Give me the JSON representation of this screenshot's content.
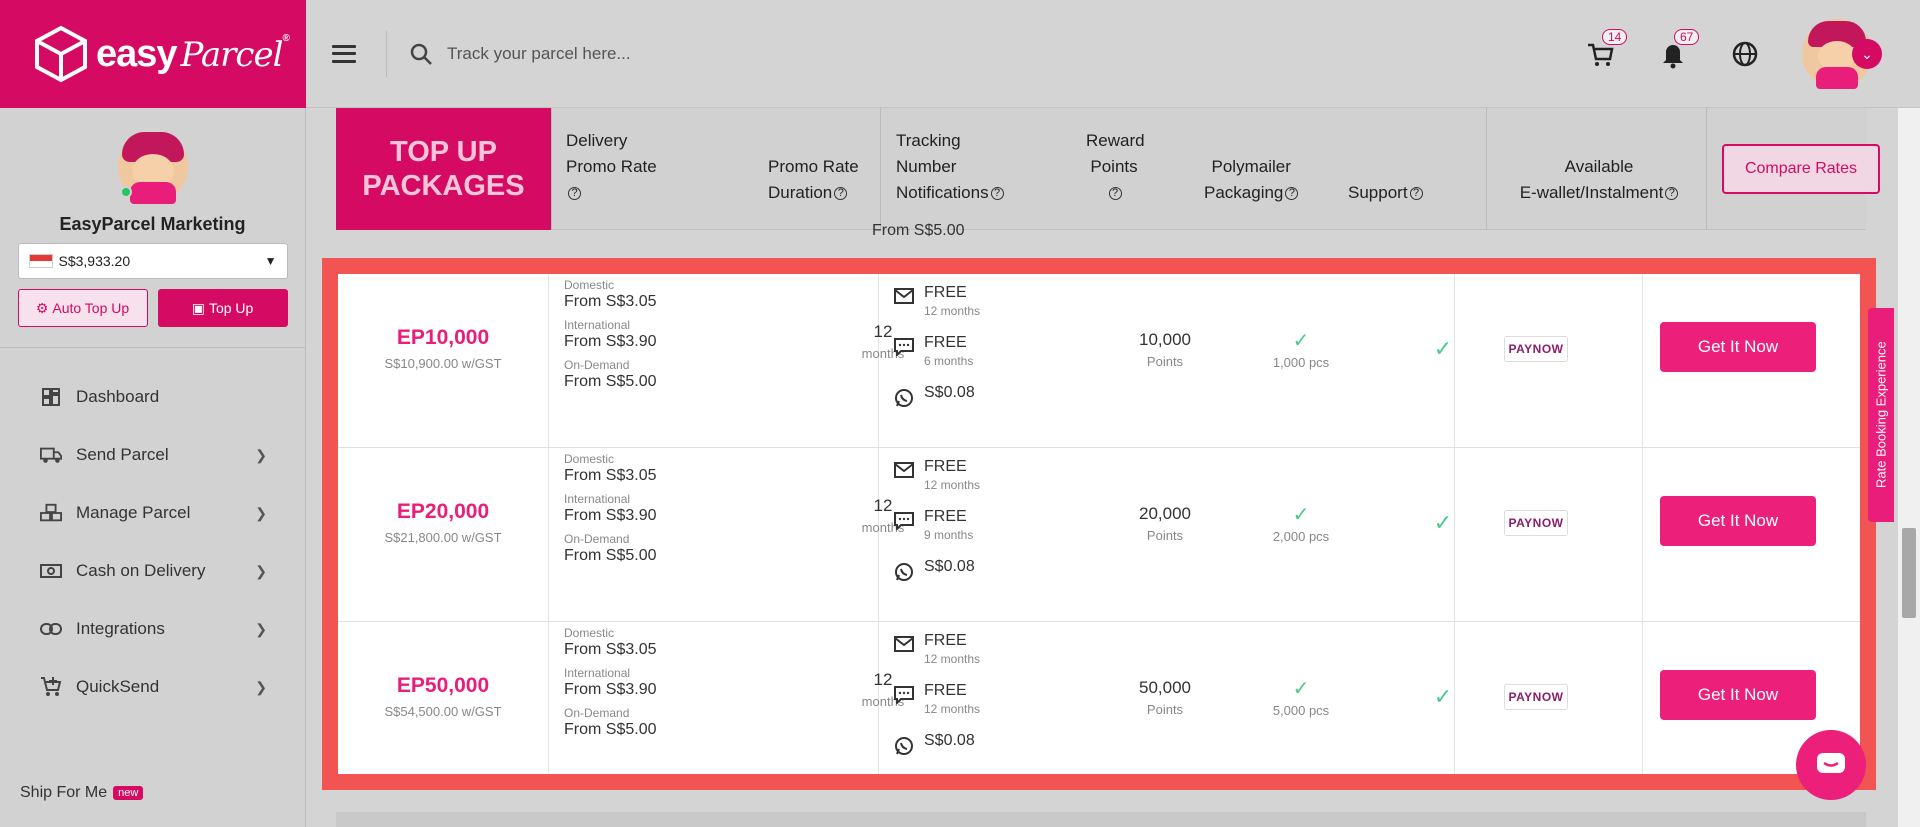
{
  "brand": {
    "name_bold": "easy",
    "name_script": "Parcel",
    "reg": "®",
    "color": "#d40a63"
  },
  "sidebar": {
    "user_name": "EasyParcel Marketing",
    "balance": "S$3,933.20",
    "auto_top_up": "Auto Top Up",
    "top_up": "Top Up",
    "items": [
      {
        "label": "Dashboard",
        "icon": "dashboard-icon",
        "has_children": false
      },
      {
        "label": "Send Parcel",
        "icon": "truck-icon",
        "has_children": true
      },
      {
        "label": "Manage Parcel",
        "icon": "boxes-icon",
        "has_children": true
      },
      {
        "label": "Cash on Delivery",
        "icon": "cash-icon",
        "has_children": true
      },
      {
        "label": "Integrations",
        "icon": "link-icon",
        "has_children": true
      },
      {
        "label": "QuickSend",
        "icon": "cart-plus-icon",
        "has_children": true
      }
    ],
    "ship_for_me": "Ship For Me",
    "new_badge": "new"
  },
  "header": {
    "search_placeholder": "Track your parcel here...",
    "cart_count": "14",
    "notification_count": "67"
  },
  "table": {
    "title_line1": "TOP UP",
    "title_line2": "PACKAGES",
    "headers": {
      "delivery_l1": "Delivery",
      "delivery_l2": "Promo Rate",
      "duration_l1": "Promo Rate",
      "duration_l2": "Duration",
      "tracking_l1": "Tracking",
      "tracking_l2": "Number",
      "tracking_l3": "Notifications",
      "reward_l1": "Reward",
      "reward_l2": "Points",
      "poly_l1": "Polymailer",
      "poly_l2": "Packaging",
      "support": "Support",
      "ewallet_l1": "Available",
      "ewallet_l2": "E-wallet/Instalment"
    },
    "compare_button": "Compare Rates",
    "peek_text": "From S$5.00",
    "rows": [
      {
        "name": "EP10,000",
        "price": "S$10,900.00 w/GST",
        "domestic_label": "Domestic",
        "domestic": "From S$3.05",
        "international_label": "International",
        "international": "From S$3.90",
        "ondemand_label": "On-Demand",
        "ondemand": "From S$5.00",
        "duration": "12",
        "duration_unit": "months",
        "email_notif": "FREE",
        "email_period": "12 months",
        "sms_notif": "FREE",
        "sms_period": "6 months",
        "whatsapp_notif": "S$0.08",
        "reward": "10,000",
        "reward_unit": "Points",
        "poly": "1,000 pcs",
        "ewallet": "PAYNOW",
        "cta": "Get It Now"
      },
      {
        "name": "EP20,000",
        "price": "S$21,800.00 w/GST",
        "domestic_label": "Domestic",
        "domestic": "From S$3.05",
        "international_label": "International",
        "international": "From S$3.90",
        "ondemand_label": "On-Demand",
        "ondemand": "From S$5.00",
        "duration": "12",
        "duration_unit": "months",
        "email_notif": "FREE",
        "email_period": "12 months",
        "sms_notif": "FREE",
        "sms_period": "9 months",
        "whatsapp_notif": "S$0.08",
        "reward": "20,000",
        "reward_unit": "Points",
        "poly": "2,000 pcs",
        "ewallet": "PAYNOW",
        "cta": "Get It Now"
      },
      {
        "name": "EP50,000",
        "price": "S$54,500.00 w/GST",
        "domestic_label": "Domestic",
        "domestic": "From S$3.05",
        "international_label": "International",
        "international": "From S$3.90",
        "ondemand_label": "On-Demand",
        "ondemand": "From S$5.00",
        "duration": "12",
        "duration_unit": "months",
        "email_notif": "FREE",
        "email_period": "12 months",
        "sms_notif": "FREE",
        "sms_period": "12 months",
        "whatsapp_notif": "S$0.08",
        "reward": "50,000",
        "reward_unit": "Points",
        "poly": "5,000 pcs",
        "ewallet": "PAYNOW",
        "cta": "Get It Now"
      }
    ]
  },
  "feedback_tab": "Rate Booking Experience",
  "highlight_color": "#f25454"
}
